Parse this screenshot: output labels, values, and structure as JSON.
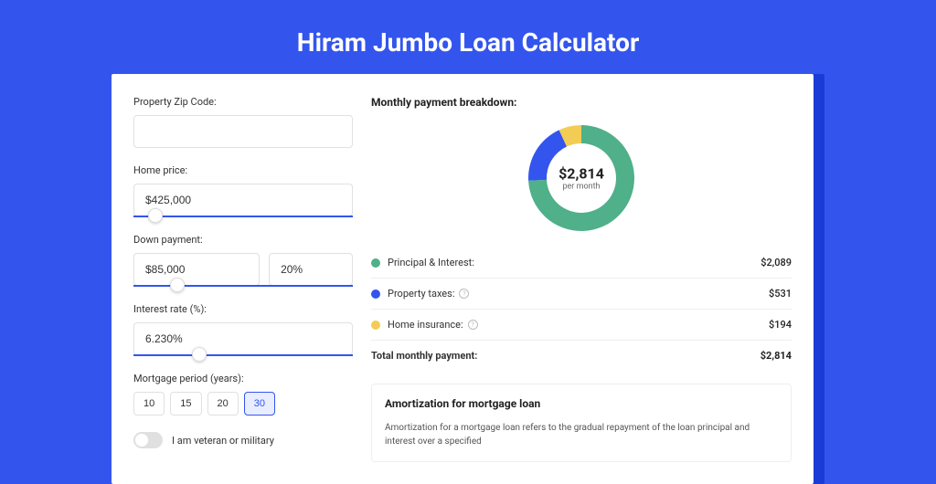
{
  "page": {
    "title": "Hiram Jumbo Loan Calculator",
    "background_color": "#3355ee",
    "accent_color": "#3355ee",
    "title_color": "#ffffff",
    "title_fontsize": 28
  },
  "form": {
    "zip": {
      "label": "Property Zip Code:",
      "value": ""
    },
    "home_price": {
      "label": "Home price:",
      "value": "$425,000",
      "slider_pos": 0.1
    },
    "down_payment": {
      "label": "Down payment:",
      "value": "$85,000",
      "pct": "20%",
      "slider_pos": 0.2
    },
    "interest": {
      "label": "Interest rate (%):",
      "value": "6.230%",
      "slider_pos": 0.3
    },
    "period": {
      "label": "Mortgage period (years):",
      "options": [
        "10",
        "15",
        "20",
        "30"
      ],
      "selected": "30"
    },
    "veteran": {
      "label": "I am veteran or military",
      "on": false
    }
  },
  "breakdown": {
    "title": "Monthly payment breakdown:",
    "center_amount": "$2,814",
    "center_sub": "per month",
    "donut": {
      "size": 120,
      "thickness": 20,
      "segments": [
        {
          "label": "Principal & Interest:",
          "value": "$2,089",
          "color": "#4fb08a",
          "fraction": 0.742
        },
        {
          "label": "Property taxes:",
          "value": "$531",
          "color": "#3355ee",
          "fraction": 0.189,
          "info": true
        },
        {
          "label": "Home insurance:",
          "value": "$194",
          "color": "#f2cc55",
          "fraction": 0.069,
          "info": true
        }
      ]
    },
    "total": {
      "label": "Total monthly payment:",
      "value": "$2,814"
    }
  },
  "amortization": {
    "title": "Amortization for mortgage loan",
    "text": "Amortization for a mortgage loan refers to the gradual repayment of the loan principal and interest over a specified"
  }
}
